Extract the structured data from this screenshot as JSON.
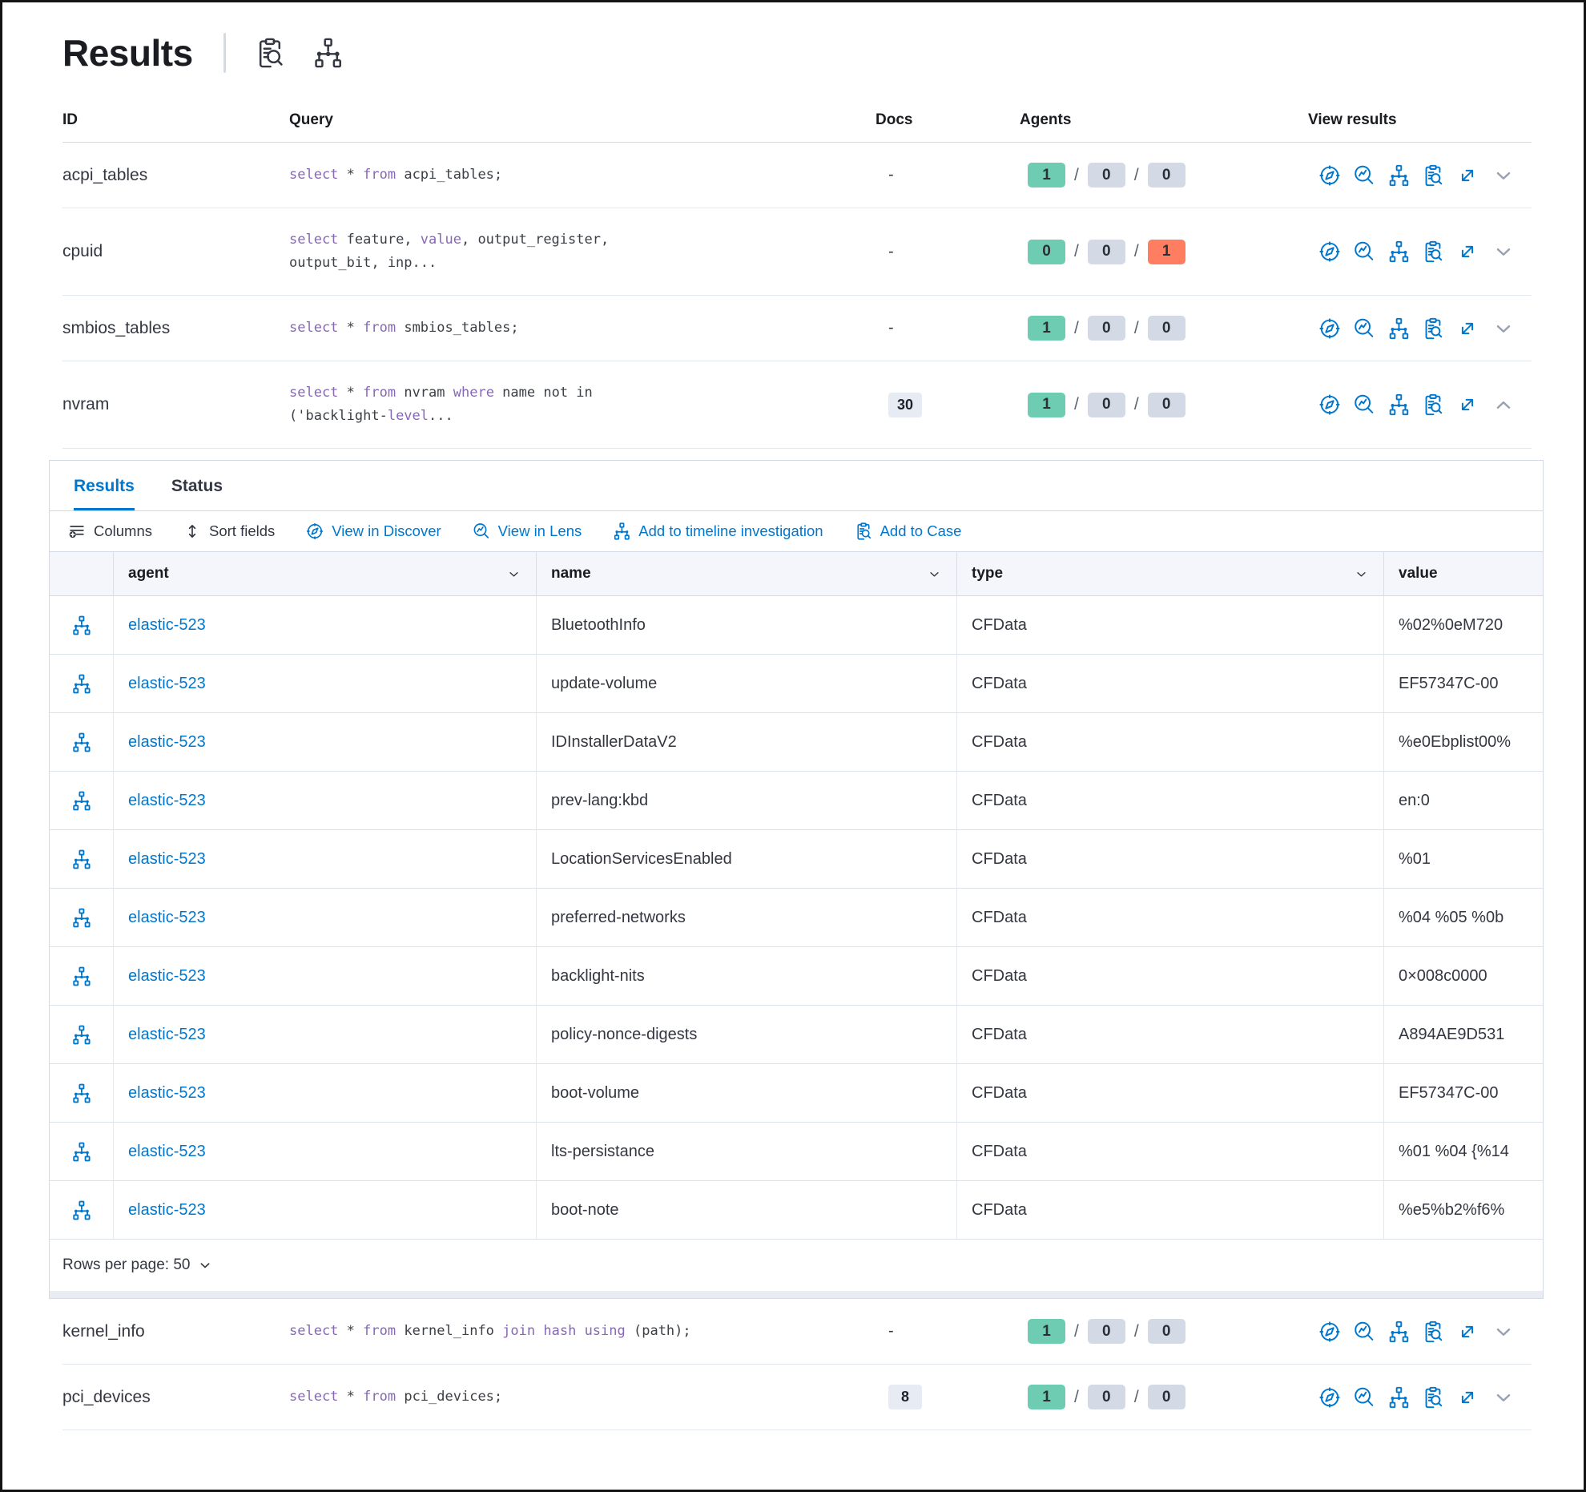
{
  "page": {
    "title": "Results"
  },
  "colors": {
    "blue": "#0077CC",
    "green": "#6DCCB1",
    "gray": "#D3DAE6",
    "red": "#FF7E62",
    "keyword_purple": "#8767b8"
  },
  "table": {
    "columns": [
      "ID",
      "Query",
      "Docs",
      "Agents",
      "View results"
    ],
    "rows": [
      {
        "id": "acpi_tables",
        "query": [
          [
            "select",
            1
          ],
          [
            " * ",
            0
          ],
          [
            "from",
            1
          ],
          [
            " acpi_tables;",
            0
          ]
        ],
        "docs": "-",
        "docs_badge": null,
        "agents": [
          {
            "v": "1",
            "c": "green"
          },
          {
            "v": "0",
            "c": "gray"
          },
          {
            "v": "0",
            "c": "gray"
          }
        ],
        "chevron": "down",
        "expanded": false
      },
      {
        "id": "cpuid",
        "query": [
          [
            "select",
            1
          ],
          [
            " feature, ",
            0
          ],
          [
            "value",
            1
          ],
          [
            ", output_register,",
            0
          ],
          [
            "\n",
            0
          ],
          [
            "output_bit, inp...",
            0
          ]
        ],
        "docs": "-",
        "docs_badge": null,
        "agents": [
          {
            "v": "0",
            "c": "green"
          },
          {
            "v": "0",
            "c": "gray"
          },
          {
            "v": "1",
            "c": "red"
          }
        ],
        "chevron": "down",
        "expanded": false
      },
      {
        "id": "smbios_tables",
        "query": [
          [
            "select",
            1
          ],
          [
            " * ",
            0
          ],
          [
            "from",
            1
          ],
          [
            " smbios_tables;",
            0
          ]
        ],
        "docs": "-",
        "docs_badge": null,
        "agents": [
          {
            "v": "1",
            "c": "green"
          },
          {
            "v": "0",
            "c": "gray"
          },
          {
            "v": "0",
            "c": "gray"
          }
        ],
        "chevron": "down",
        "expanded": false
      },
      {
        "id": "nvram",
        "query": [
          [
            "select",
            1
          ],
          [
            " * ",
            0
          ],
          [
            "from",
            1
          ],
          [
            " nvram ",
            0
          ],
          [
            "where",
            1
          ],
          [
            " name not in",
            0
          ],
          [
            "\n",
            0
          ],
          [
            "('backlight-",
            0
          ],
          [
            "level",
            1
          ],
          [
            "...",
            0
          ]
        ],
        "docs": null,
        "docs_badge": "30",
        "agents": [
          {
            "v": "1",
            "c": "green"
          },
          {
            "v": "0",
            "c": "gray"
          },
          {
            "v": "0",
            "c": "gray"
          }
        ],
        "chevron": "up",
        "expanded": true
      },
      {
        "id": "kernel_info",
        "query": [
          [
            "select",
            1
          ],
          [
            " * ",
            0
          ],
          [
            "from",
            1
          ],
          [
            " kernel_info ",
            0
          ],
          [
            "join",
            1
          ],
          [
            " ",
            0
          ],
          [
            "hash",
            1
          ],
          [
            " ",
            0
          ],
          [
            "using",
            1
          ],
          [
            " (path);",
            0
          ]
        ],
        "docs": "-",
        "docs_badge": null,
        "agents": [
          {
            "v": "1",
            "c": "green"
          },
          {
            "v": "0",
            "c": "gray"
          },
          {
            "v": "0",
            "c": "gray"
          }
        ],
        "chevron": "down",
        "expanded": false
      },
      {
        "id": "pci_devices",
        "query": [
          [
            "select",
            1
          ],
          [
            " * ",
            0
          ],
          [
            "from",
            1
          ],
          [
            " pci_devices;",
            0
          ]
        ],
        "docs": null,
        "docs_badge": "8",
        "agents": [
          {
            "v": "1",
            "c": "green"
          },
          {
            "v": "0",
            "c": "gray"
          },
          {
            "v": "0",
            "c": "gray"
          }
        ],
        "chevron": "down",
        "expanded": false
      }
    ]
  },
  "expanded_panel": {
    "tabs": [
      {
        "label": "Results",
        "active": true
      },
      {
        "label": "Status",
        "active": false
      }
    ],
    "toolbar": [
      {
        "icon": "columns",
        "label": "Columns",
        "color": "dark"
      },
      {
        "icon": "sort",
        "label": "Sort fields",
        "color": "dark"
      },
      {
        "icon": "discover",
        "label": "View in Discover",
        "color": "blue"
      },
      {
        "icon": "lens",
        "label": "View in Lens",
        "color": "blue"
      },
      {
        "icon": "timeline",
        "label": "Add to timeline investigation",
        "color": "blue"
      },
      {
        "icon": "case",
        "label": "Add to Case",
        "color": "blue"
      }
    ],
    "grid": {
      "columns": [
        {
          "label": "agent",
          "sortable": true
        },
        {
          "label": "name",
          "sortable": true
        },
        {
          "label": "type",
          "sortable": true
        },
        {
          "label": "value",
          "sortable": false
        }
      ],
      "rows": [
        {
          "agent": "elastic-523",
          "name": "BluetoothInfo",
          "type": "CFData",
          "value": "%02%0eM720"
        },
        {
          "agent": "elastic-523",
          "name": "update-volume",
          "type": "CFData",
          "value": "EF57347C-00"
        },
        {
          "agent": "elastic-523",
          "name": "IDInstallerDataV2",
          "type": "CFData",
          "value": "%e0Ebplist00%"
        },
        {
          "agent": "elastic-523",
          "name": "prev-lang:kbd",
          "type": "CFData",
          "value": "en:0"
        },
        {
          "agent": "elastic-523",
          "name": "LocationServicesEnabled",
          "type": "CFData",
          "value": "%01"
        },
        {
          "agent": "elastic-523",
          "name": "preferred-networks",
          "type": "CFData",
          "value": "%04 %05 %0b"
        },
        {
          "agent": "elastic-523",
          "name": "backlight-nits",
          "type": "CFData",
          "value": "0×008c0000"
        },
        {
          "agent": "elastic-523",
          "name": "policy-nonce-digests",
          "type": "CFData",
          "value": "A894AE9D531"
        },
        {
          "agent": "elastic-523",
          "name": "boot-volume",
          "type": "CFData",
          "value": "EF57347C-00"
        },
        {
          "agent": "elastic-523",
          "name": "lts-persistance",
          "type": "CFData",
          "value": "%01 %04 {%14"
        },
        {
          "agent": "elastic-523",
          "name": "boot-note",
          "type": "CFData",
          "value": "%e5%b2%f6%"
        }
      ]
    },
    "footer": {
      "label": "Rows per page: 50"
    }
  }
}
